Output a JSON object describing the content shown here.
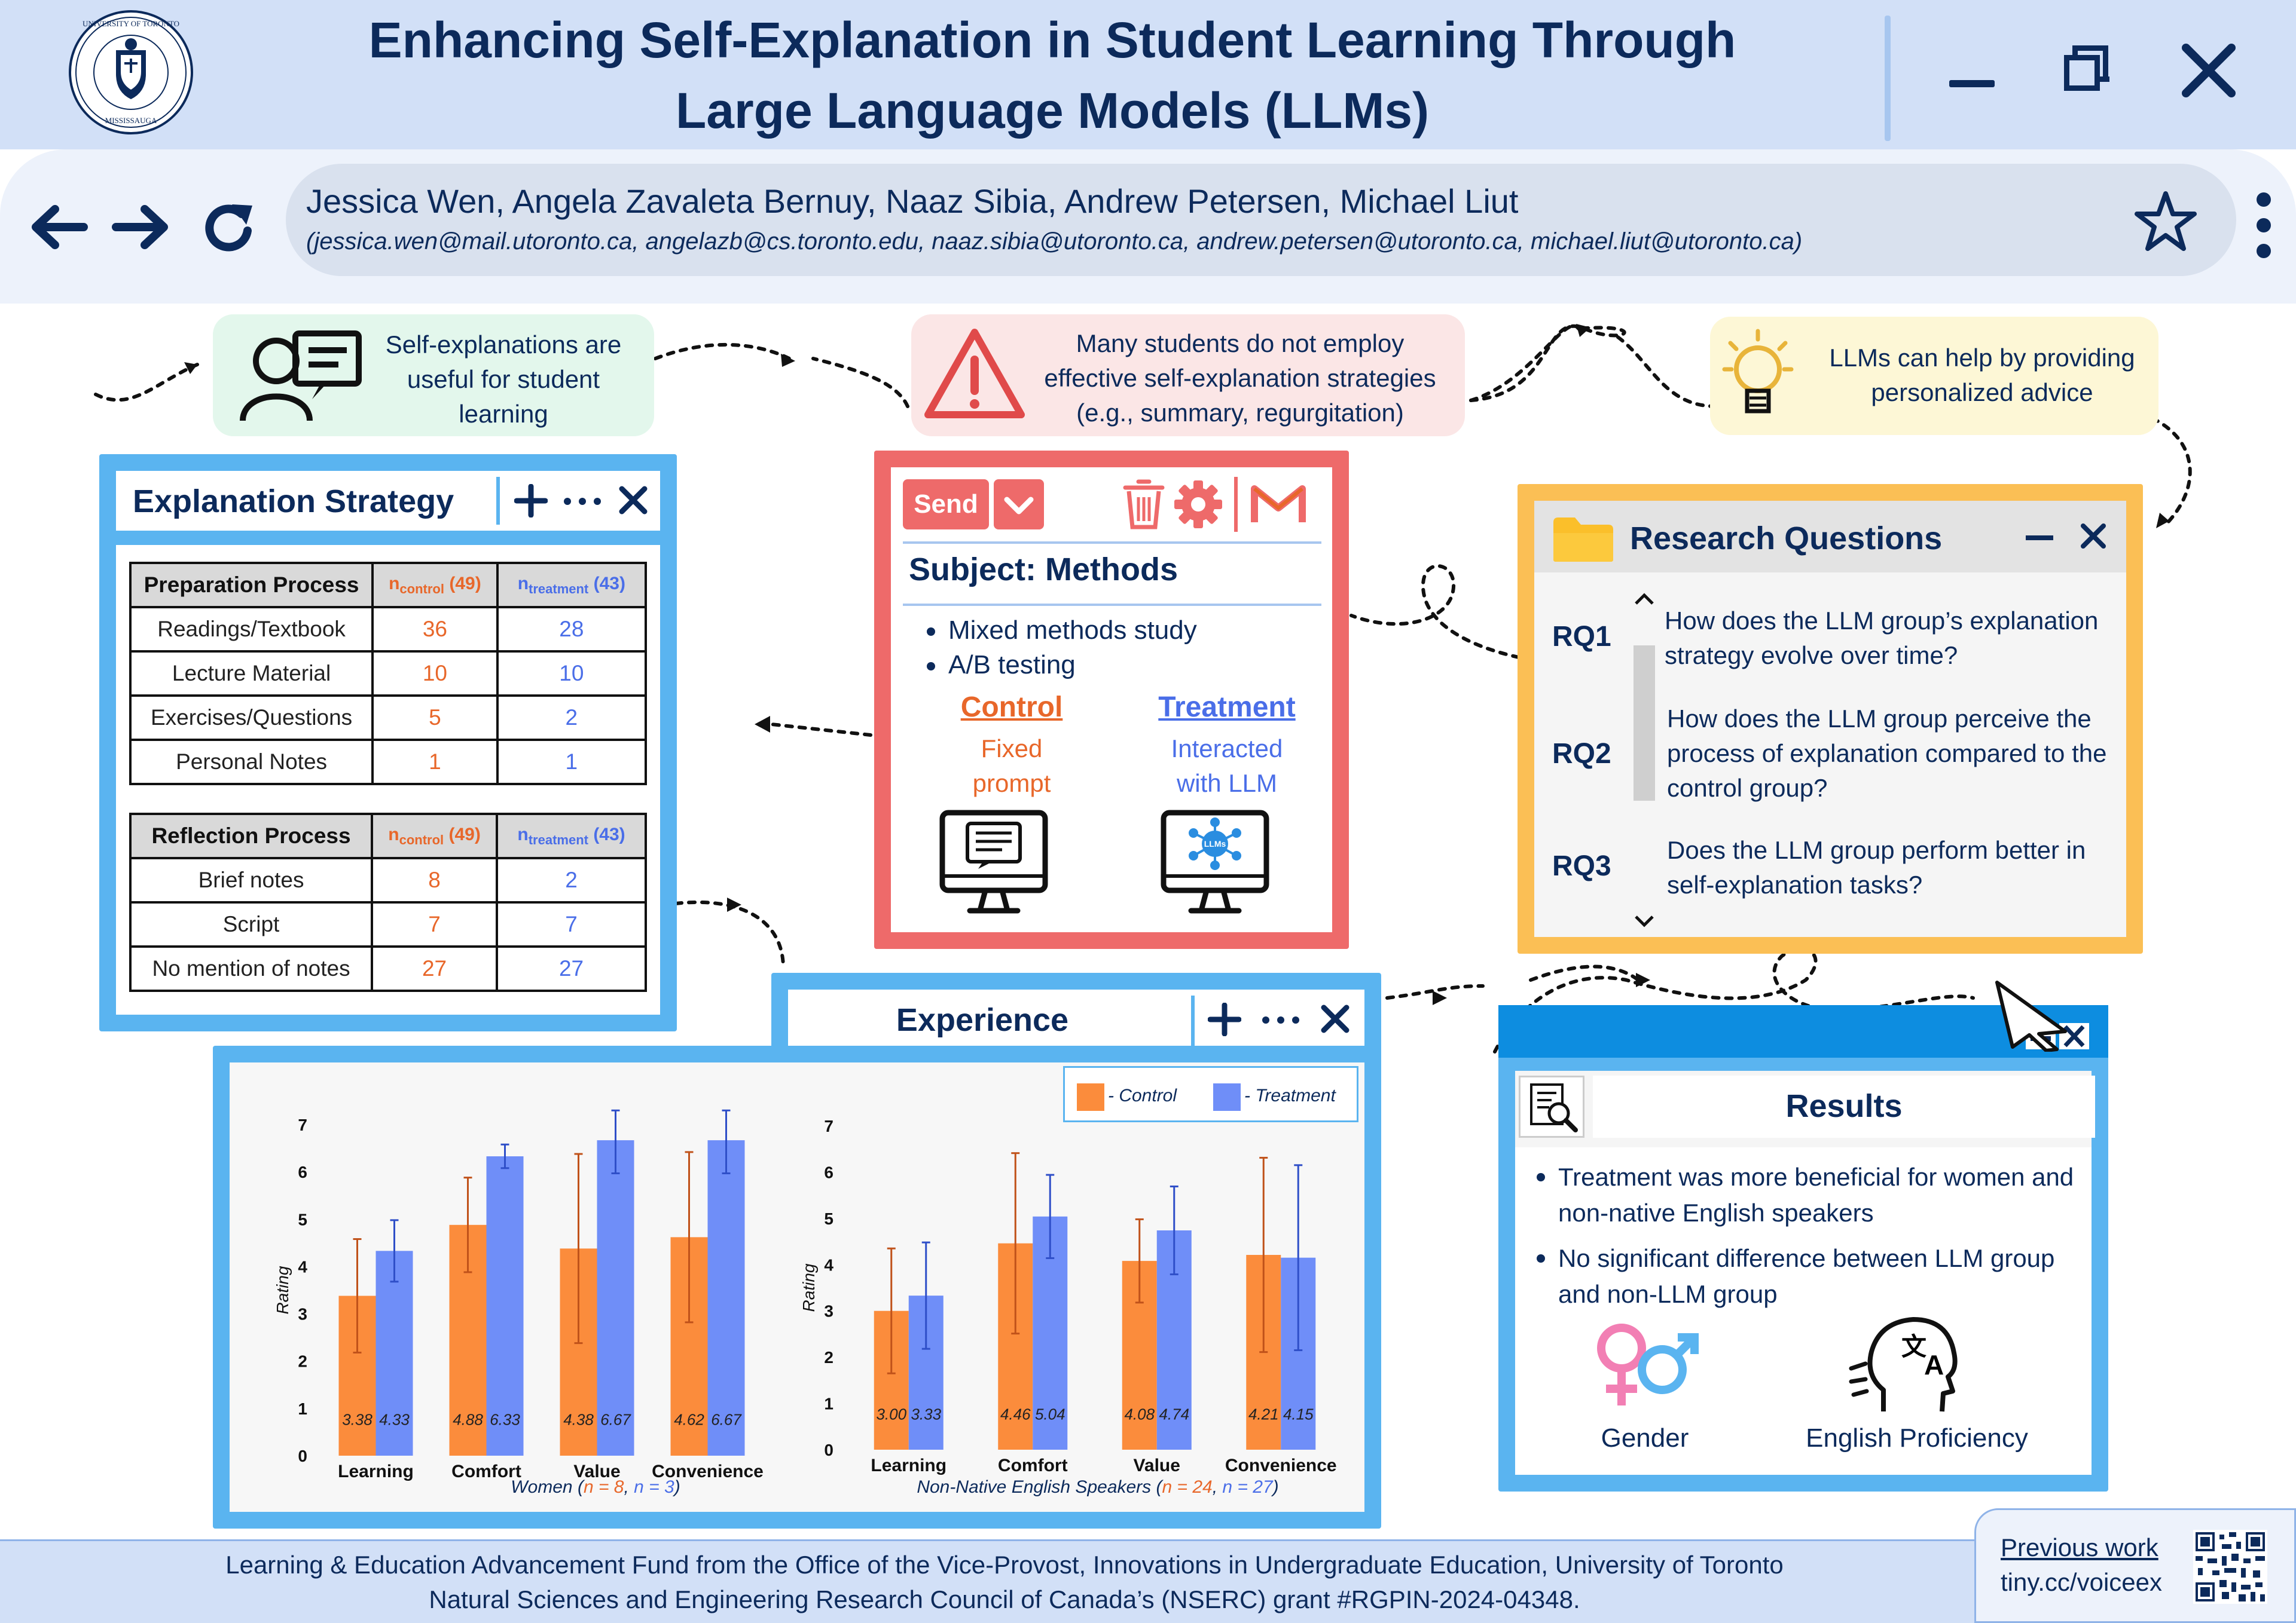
{
  "header": {
    "title_line1": "Enhancing Self-Explanation in Student Learning Through",
    "title_line2": "Large Language Models (LLMs)",
    "logo_ring_top": "UNIVERSITY OF TORONTO",
    "logo_ring_bottom": "MISSISSAUGA"
  },
  "addressbar": {
    "authors": "Jessica Wen, Angela Zavaleta Bernuy, Naaz Sibia, Andrew Petersen, Michael Liut",
    "emails": "(jessica.wen@mail.utoronto.ca, angelazb@cs.toronto.edu, naaz.sibia@utoronto.ca, andrew.petersen@utoronto.ca, michael.liut@utoronto.ca)"
  },
  "flow": {
    "box1": "Self-explanations are useful for student learning",
    "box2": "Many students do not employ effective self-explanation strategies (e.g., summary, regurgitation)",
    "box3": "LLMs can help by providing personalized advice"
  },
  "strategy": {
    "title": "Explanation Strategy",
    "n_control_label": "n",
    "n_control_sub": "control",
    "n_control_count": "(49)",
    "n_treatment_label": "n",
    "n_treatment_sub": "treatment",
    "n_treatment_count": "(43)",
    "prep_header": "Preparation Process",
    "prep_rows": [
      {
        "label": "Readings/Textbook",
        "control": "36",
        "treatment": "28"
      },
      {
        "label": "Lecture Material",
        "control": "10",
        "treatment": "10"
      },
      {
        "label": "Exercises/Questions",
        "control": "5",
        "treatment": "2"
      },
      {
        "label": "Personal Notes",
        "control": "1",
        "treatment": "1"
      }
    ],
    "refl_header": "Reflection Process",
    "refl_rows": [
      {
        "label": "Brief notes",
        "control": "8",
        "treatment": "2"
      },
      {
        "label": "Script",
        "control": "7",
        "treatment": "7"
      },
      {
        "label": "No mention of notes",
        "control": "27",
        "treatment": "27"
      }
    ]
  },
  "methods": {
    "send": "Send",
    "subject": "Subject: Methods",
    "bullets": [
      "Mixed methods study",
      "A/B testing"
    ],
    "control_title": "Control",
    "control_desc": "Fixed prompt",
    "treatment_title": "Treatment",
    "treatment_desc": "Interacted with LLM",
    "llm_badge": "LLMs"
  },
  "rq": {
    "title": "Research Questions",
    "items": [
      {
        "id": "RQ1",
        "text": "How does the LLM group’s explanation strategy evolve over time?"
      },
      {
        "id": "RQ2",
        "text": "How does the LLM group perceive the process of explanation compared to the control group?"
      },
      {
        "id": "RQ3",
        "text": "Does the LLM group perform better in self-explanation tasks?"
      }
    ]
  },
  "experience": {
    "title": "Experience",
    "legend_control": "- Control",
    "legend_treatment": "- Treatment",
    "left_caption_pre": "Women (",
    "left_caption_nc": "n = 8",
    "left_caption_sep": ", ",
    "left_caption_nt": "n = 3",
    "left_caption_post": ")",
    "right_caption_pre": "Non-Native English Speakers (",
    "right_caption_nc": "n = 24",
    "right_caption_sep": ", ",
    "right_caption_nt": "n = 27",
    "right_caption_post": ")"
  },
  "chart_data": [
    {
      "type": "bar",
      "ylabel": "Rating",
      "ylim": [
        0,
        7
      ],
      "categories": [
        "Learning",
        "Comfort",
        "Value",
        "Convenience"
      ],
      "series": [
        {
          "name": "Control",
          "values": [
            3.38,
            4.88,
            4.38,
            4.62
          ],
          "errors": [
            1.2,
            1.0,
            2.0,
            1.8
          ],
          "color": "#fb8c3c"
        },
        {
          "name": "Treatment",
          "values": [
            4.33,
            6.33,
            6.67,
            6.67
          ],
          "errors": [
            0.65,
            0.25,
            0.7,
            0.7
          ],
          "color": "#6f8ef8"
        }
      ],
      "grid": false
    },
    {
      "type": "bar",
      "ylabel": "Rating",
      "ylim": [
        0,
        7
      ],
      "categories": [
        "Learning",
        "Comfort",
        "Value",
        "Convenience"
      ],
      "series": [
        {
          "name": "Control",
          "values": [
            3.0,
            4.46,
            4.08,
            4.21
          ],
          "errors": [
            1.35,
            1.95,
            0.9,
            2.1
          ],
          "color": "#fb8c3c"
        },
        {
          "name": "Treatment",
          "values": [
            3.33,
            5.04,
            4.74,
            4.15
          ],
          "errors": [
            1.15,
            0.9,
            0.95,
            2.0
          ],
          "color": "#6f8ef8"
        }
      ],
      "legend": "top-right",
      "grid": false
    }
  ],
  "results": {
    "title": "Results",
    "bullets": [
      "Treatment was more beneficial for women and non-native English speakers",
      "No significant difference between LLM group and non-LLM group"
    ],
    "icon1_label": "Gender",
    "icon2_label": "English Proficiency"
  },
  "footer": {
    "line1": "Learning & Education Advancement Fund from the Office of the Vice-Provost, Innovations in Undergraduate Education, University of Toronto",
    "line2": "Natural Sciences and Engineering Research Council of Canada’s (NSERC) grant #RGPIN-2024-04348.",
    "prev_label": "Previous work",
    "prev_url": "tiny.cc/voiceex"
  },
  "colors": {
    "navy": "#0c2a5b",
    "blue_frame": "#5ab4f0",
    "red_frame": "#ee6a6a",
    "orange_frame": "#fbbf55",
    "control": "#fb8c3c",
    "treatment": "#6f8ef8",
    "header_bg": "#d2e0f7"
  }
}
